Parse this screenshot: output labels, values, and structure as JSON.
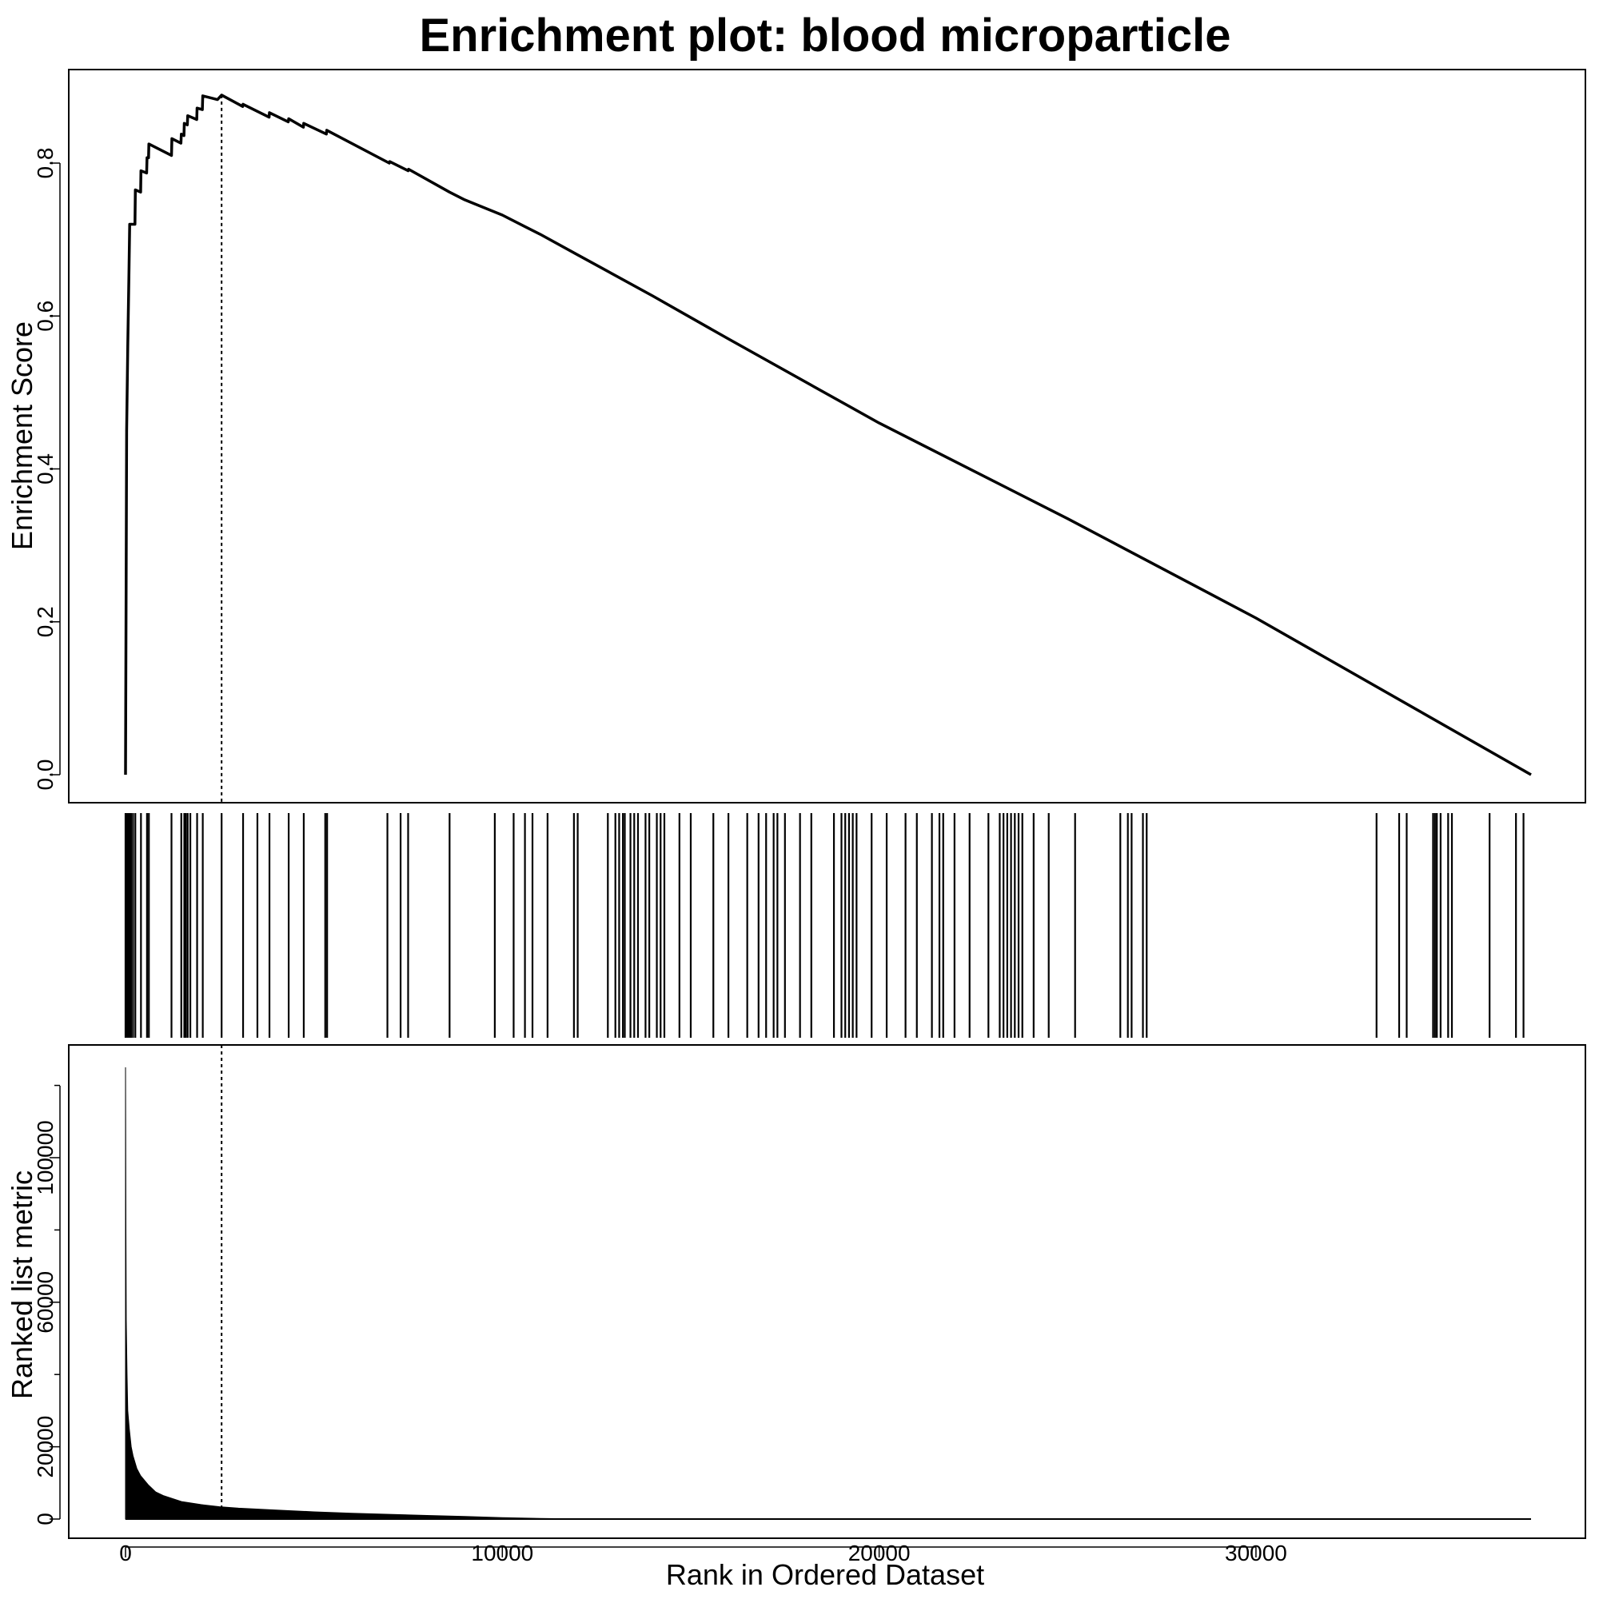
{
  "chart_data": {
    "type": "line",
    "title": "Enrichment plot: blood microparticle",
    "xlabel": "Rank in Ordered Dataset",
    "n_genes": 37300,
    "x_ticks": [
      0,
      10000,
      20000,
      30000
    ],
    "x_tick_labels": [
      "0",
      "10000",
      "20000",
      "30000"
    ],
    "peak_rank": 2550,
    "enrichment": {
      "ylabel": "Enrichment Score",
      "ylim": [
        0,
        0.9
      ],
      "y_ticks": [
        0.0,
        0.2,
        0.4,
        0.6,
        0.8
      ],
      "y_tick_labels": [
        "0.0",
        "0.2",
        "0.4",
        "0.6",
        "0.8"
      ],
      "points": [
        [
          0,
          0.0
        ],
        [
          30,
          0.45
        ],
        [
          60,
          0.56
        ],
        [
          90,
          0.65
        ],
        [
          110,
          0.72
        ],
        [
          250,
          0.72
        ],
        [
          260,
          0.765
        ],
        [
          400,
          0.762
        ],
        [
          410,
          0.79
        ],
        [
          560,
          0.787
        ],
        [
          570,
          0.807
        ],
        [
          610,
          0.807
        ],
        [
          620,
          0.825
        ],
        [
          1220,
          0.81
        ],
        [
          1230,
          0.832
        ],
        [
          1470,
          0.826
        ],
        [
          1480,
          0.838
        ],
        [
          1550,
          0.836
        ],
        [
          1560,
          0.852
        ],
        [
          1640,
          0.85
        ],
        [
          1650,
          0.862
        ],
        [
          1890,
          0.857
        ],
        [
          1900,
          0.872
        ],
        [
          2040,
          0.87
        ],
        [
          2050,
          0.888
        ],
        [
          2440,
          0.883
        ],
        [
          2550,
          0.889
        ],
        [
          3110,
          0.874
        ],
        [
          3120,
          0.877
        ],
        [
          3810,
          0.86
        ],
        [
          3820,
          0.866
        ],
        [
          4320,
          0.854
        ],
        [
          4330,
          0.858
        ],
        [
          4720,
          0.847
        ],
        [
          4730,
          0.852
        ],
        [
          5330,
          0.838
        ],
        [
          5340,
          0.843
        ],
        [
          7000,
          0.8
        ],
        [
          7010,
          0.802
        ],
        [
          7500,
          0.79
        ],
        [
          7510,
          0.792
        ],
        [
          8600,
          0.762
        ],
        [
          9000,
          0.752
        ],
        [
          10000,
          0.732
        ],
        [
          10600,
          0.717
        ],
        [
          11000,
          0.707
        ],
        [
          12000,
          0.68
        ],
        [
          14000,
          0.626
        ],
        [
          16000,
          0.57
        ],
        [
          20000,
          0.46
        ],
        [
          25000,
          0.335
        ],
        [
          30000,
          0.205
        ],
        [
          37300,
          0.0
        ]
      ]
    },
    "hits": [
      0,
      30,
      60,
      90,
      110,
      150,
      200,
      260,
      410,
      570,
      620,
      1220,
      1480,
      1560,
      1600,
      1650,
      1720,
      1900,
      2050,
      2550,
      3120,
      3500,
      3820,
      4330,
      4730,
      5300,
      5350,
      6950,
      7300,
      7500,
      8600,
      9800,
      10300,
      10600,
      10800,
      11200,
      11900,
      12000,
      12800,
      13000,
      13100,
      13200,
      13250,
      13400,
      13500,
      13600,
      13800,
      13900,
      14100,
      14200,
      14300,
      14700,
      15000,
      15600,
      16000,
      16500,
      16800,
      17000,
      17200,
      17300,
      17500,
      17900,
      18200,
      18800,
      19000,
      19100,
      19200,
      19300,
      19400,
      19800,
      20200,
      20700,
      21000,
      21400,
      21600,
      21700,
      22000,
      22400,
      22900,
      23200,
      23300,
      23400,
      23500,
      23600,
      23700,
      23800,
      24100,
      24500,
      25200,
      26400,
      26600,
      26700,
      27000,
      27100,
      33200,
      33800,
      34000,
      34700,
      34750,
      34800,
      34900,
      35100,
      35200,
      36200,
      36900,
      37100
    ],
    "metric": {
      "ylabel": "Ranked list metric",
      "ylim": [
        -3000,
        130000
      ],
      "y_ticks": [
        0,
        20000,
        60000,
        100000
      ],
      "y_tick_labels": [
        "0",
        "20000",
        "60000",
        "100000"
      ],
      "minor_y_ticks": [
        40000,
        80000,
        120000
      ],
      "points": [
        [
          0,
          125000
        ],
        [
          10,
          80000
        ],
        [
          20,
          55000
        ],
        [
          40,
          40000
        ],
        [
          60,
          30000
        ],
        [
          100,
          25000
        ],
        [
          150,
          20000
        ],
        [
          200,
          17500
        ],
        [
          300,
          14000
        ],
        [
          400,
          12000
        ],
        [
          600,
          9500
        ],
        [
          800,
          7500
        ],
        [
          1000,
          6500
        ],
        [
          1500,
          4800
        ],
        [
          2000,
          4000
        ],
        [
          2500,
          3400
        ],
        [
          3000,
          3000
        ],
        [
          4000,
          2500
        ],
        [
          5000,
          2000
        ],
        [
          6000,
          1600
        ],
        [
          7000,
          1300
        ],
        [
          8000,
          1000
        ],
        [
          9000,
          700
        ],
        [
          10000,
          400
        ],
        [
          11000,
          150
        ],
        [
          12000,
          30
        ],
        [
          13000,
          0
        ],
        [
          37300,
          0
        ]
      ]
    }
  }
}
